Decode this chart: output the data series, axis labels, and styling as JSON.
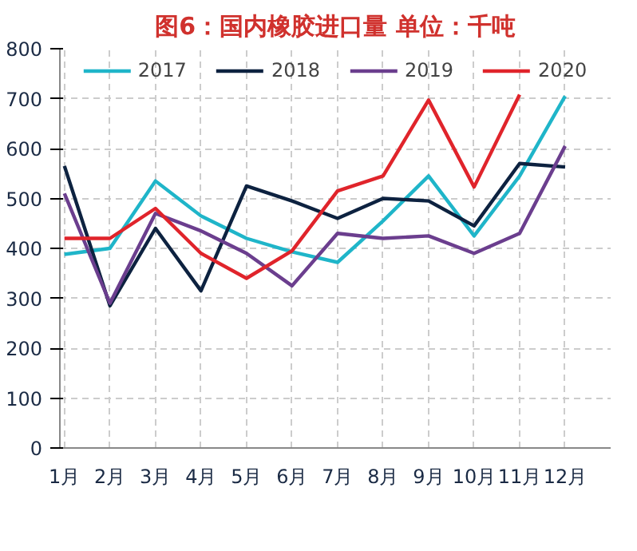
{
  "chart_data": {
    "type": "line",
    "title": "图6：国内橡胶进口量 单位：千吨",
    "categories": [
      "1月",
      "2月",
      "3月",
      "4月",
      "5月",
      "6月",
      "7月",
      "8月",
      "9月",
      "10月",
      "11月",
      "12月"
    ],
    "series": [
      {
        "name": "2017",
        "color": "#1fb5c9",
        "values": [
          388,
          400,
          535,
          465,
          420,
          393,
          372,
          455,
          545,
          425,
          545,
          705
        ]
      },
      {
        "name": "2018",
        "color": "#0d2240",
        "values": [
          565,
          285,
          440,
          315,
          525,
          495,
          460,
          500,
          495,
          445,
          570,
          563
        ]
      },
      {
        "name": "2019",
        "color": "#6b3e8e",
        "values": [
          510,
          290,
          470,
          435,
          390,
          325,
          430,
          420,
          425,
          390,
          430,
          605
        ]
      },
      {
        "name": "2020",
        "color": "#e0242b",
        "values": [
          420,
          420,
          480,
          390,
          340,
          395,
          515,
          545,
          697,
          523,
          708,
          null
        ]
      }
    ],
    "ylim": [
      0,
      800
    ],
    "yticks": [
      0,
      100,
      200,
      300,
      400,
      500,
      600,
      700,
      800
    ],
    "grid": true,
    "legend": "top",
    "marker": "none",
    "line_style": "solid"
  }
}
